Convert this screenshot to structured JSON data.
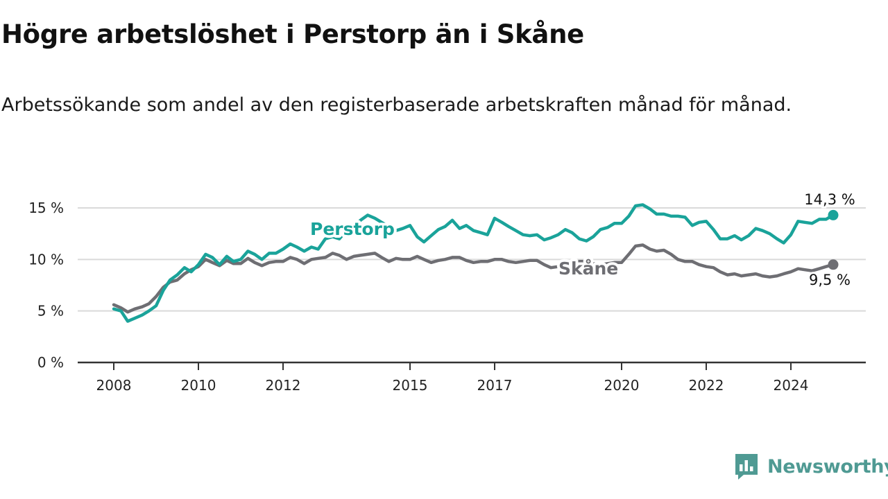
{
  "title": "Högre arbetslöshet i Perstorp än i Skåne",
  "subtitle": "Arbetssökande som andel av den registerbaserade arbetskraften månad för månad.",
  "brand": {
    "name": "Newsworthy",
    "icon": "newsworthy-logo-icon",
    "color": "#4f9a93"
  },
  "chart_data": {
    "type": "line",
    "title": "Högre arbetslöshet i Perstorp än i Skåne",
    "xlabel": "",
    "ylabel": "",
    "xlim": [
      2008,
      2026
    ],
    "ylim": [
      0,
      15
    ],
    "grid": true,
    "y_ticks": [
      {
        "value": 0,
        "label": "0 %"
      },
      {
        "value": 5,
        "label": "5 %"
      },
      {
        "value": 10,
        "label": "10 %"
      },
      {
        "value": 15,
        "label": "15 %"
      }
    ],
    "x_ticks": [
      {
        "value": 2008,
        "label": "2008"
      },
      {
        "value": 2010,
        "label": "2010"
      },
      {
        "value": 2012,
        "label": "2012"
      },
      {
        "value": 2015,
        "label": "2015"
      },
      {
        "value": 2017,
        "label": "2017"
      },
      {
        "value": 2020,
        "label": "2020"
      },
      {
        "value": 2022,
        "label": "2022"
      },
      {
        "value": 2024,
        "label": "2024"
      }
    ],
    "series": [
      {
        "name": "Perstorp",
        "color": "#1aa39a",
        "end_label": "14,3 %",
        "points": [
          [
            2008.0,
            5.2
          ],
          [
            2008.17,
            5.0
          ],
          [
            2008.33,
            4.0
          ],
          [
            2008.5,
            4.3
          ],
          [
            2008.67,
            4.6
          ],
          [
            2008.83,
            5.0
          ],
          [
            2009.0,
            5.5
          ],
          [
            2009.17,
            7.0
          ],
          [
            2009.33,
            8.0
          ],
          [
            2009.5,
            8.5
          ],
          [
            2009.67,
            9.2
          ],
          [
            2009.83,
            8.8
          ],
          [
            2010.0,
            9.5
          ],
          [
            2010.17,
            10.5
          ],
          [
            2010.33,
            10.2
          ],
          [
            2010.5,
            9.5
          ],
          [
            2010.67,
            10.3
          ],
          [
            2010.83,
            9.8
          ],
          [
            2011.0,
            10.0
          ],
          [
            2011.17,
            10.8
          ],
          [
            2011.33,
            10.5
          ],
          [
            2011.5,
            10.0
          ],
          [
            2011.67,
            10.6
          ],
          [
            2011.83,
            10.6
          ],
          [
            2012.0,
            11.0
          ],
          [
            2012.17,
            11.5
          ],
          [
            2012.33,
            11.2
          ],
          [
            2012.5,
            10.8
          ],
          [
            2012.67,
            11.2
          ],
          [
            2012.83,
            11.0
          ],
          [
            2013.0,
            12.0
          ],
          [
            2013.17,
            12.2
          ],
          [
            2013.33,
            12.0
          ],
          [
            2013.5,
            12.8
          ],
          [
            2013.67,
            13.2
          ],
          [
            2013.83,
            13.8
          ],
          [
            2014.0,
            14.3
          ],
          [
            2014.17,
            14.0
          ],
          [
            2014.33,
            13.6
          ],
          [
            2014.5,
            13.2
          ],
          [
            2014.67,
            12.8
          ],
          [
            2014.83,
            13.0
          ],
          [
            2015.0,
            13.3
          ],
          [
            2015.17,
            12.2
          ],
          [
            2015.33,
            11.7
          ],
          [
            2015.5,
            12.3
          ],
          [
            2015.67,
            12.9
          ],
          [
            2015.83,
            13.2
          ],
          [
            2016.0,
            13.8
          ],
          [
            2016.17,
            13.0
          ],
          [
            2016.33,
            13.3
          ],
          [
            2016.5,
            12.8
          ],
          [
            2016.67,
            12.6
          ],
          [
            2016.83,
            12.4
          ],
          [
            2017.0,
            14.0
          ],
          [
            2017.17,
            13.6
          ],
          [
            2017.33,
            13.2
          ],
          [
            2017.5,
            12.8
          ],
          [
            2017.67,
            12.4
          ],
          [
            2017.83,
            12.3
          ],
          [
            2018.0,
            12.4
          ],
          [
            2018.17,
            11.9
          ],
          [
            2018.33,
            12.1
          ],
          [
            2018.5,
            12.4
          ],
          [
            2018.67,
            12.9
          ],
          [
            2018.83,
            12.6
          ],
          [
            2019.0,
            12.0
          ],
          [
            2019.17,
            11.8
          ],
          [
            2019.33,
            12.2
          ],
          [
            2019.5,
            12.9
          ],
          [
            2019.67,
            13.1
          ],
          [
            2019.83,
            13.5
          ],
          [
            2020.0,
            13.5
          ],
          [
            2020.17,
            14.2
          ],
          [
            2020.33,
            15.2
          ],
          [
            2020.5,
            15.3
          ],
          [
            2020.67,
            14.9
          ],
          [
            2020.83,
            14.4
          ],
          [
            2021.0,
            14.4
          ],
          [
            2021.17,
            14.2
          ],
          [
            2021.33,
            14.2
          ],
          [
            2021.5,
            14.1
          ],
          [
            2021.67,
            13.3
          ],
          [
            2021.83,
            13.6
          ],
          [
            2022.0,
            13.7
          ],
          [
            2022.17,
            12.9
          ],
          [
            2022.33,
            12.0
          ],
          [
            2022.5,
            12.0
          ],
          [
            2022.67,
            12.3
          ],
          [
            2022.83,
            11.9
          ],
          [
            2023.0,
            12.3
          ],
          [
            2023.17,
            13.0
          ],
          [
            2023.33,
            12.8
          ],
          [
            2023.5,
            12.5
          ],
          [
            2023.67,
            12.0
          ],
          [
            2023.83,
            11.6
          ],
          [
            2024.0,
            12.4
          ],
          [
            2024.17,
            13.7
          ],
          [
            2024.33,
            13.6
          ],
          [
            2024.5,
            13.5
          ],
          [
            2024.67,
            13.9
          ],
          [
            2024.83,
            13.9
          ],
          [
            2025.0,
            14.3
          ]
        ]
      },
      {
        "name": "Skåne",
        "color": "#6e6e73",
        "end_label": "9,5 %",
        "points": [
          [
            2008.0,
            5.6
          ],
          [
            2008.17,
            5.3
          ],
          [
            2008.33,
            4.9
          ],
          [
            2008.5,
            5.2
          ],
          [
            2008.67,
            5.4
          ],
          [
            2008.83,
            5.7
          ],
          [
            2009.0,
            6.4
          ],
          [
            2009.17,
            7.3
          ],
          [
            2009.33,
            7.8
          ],
          [
            2009.5,
            8.0
          ],
          [
            2009.67,
            8.6
          ],
          [
            2009.83,
            9.0
          ],
          [
            2010.0,
            9.3
          ],
          [
            2010.17,
            10.0
          ],
          [
            2010.33,
            9.7
          ],
          [
            2010.5,
            9.4
          ],
          [
            2010.67,
            9.9
          ],
          [
            2010.83,
            9.6
          ],
          [
            2011.0,
            9.6
          ],
          [
            2011.17,
            10.1
          ],
          [
            2011.33,
            9.7
          ],
          [
            2011.5,
            9.4
          ],
          [
            2011.67,
            9.7
          ],
          [
            2011.83,
            9.8
          ],
          [
            2012.0,
            9.8
          ],
          [
            2012.17,
            10.2
          ],
          [
            2012.33,
            10.0
          ],
          [
            2012.5,
            9.6
          ],
          [
            2012.67,
            10.0
          ],
          [
            2012.83,
            10.1
          ],
          [
            2013.0,
            10.2
          ],
          [
            2013.17,
            10.6
          ],
          [
            2013.33,
            10.4
          ],
          [
            2013.5,
            10.0
          ],
          [
            2013.67,
            10.3
          ],
          [
            2013.83,
            10.4
          ],
          [
            2014.0,
            10.5
          ],
          [
            2014.17,
            10.6
          ],
          [
            2014.33,
            10.2
          ],
          [
            2014.5,
            9.8
          ],
          [
            2014.67,
            10.1
          ],
          [
            2014.83,
            10.0
          ],
          [
            2015.0,
            10.0
          ],
          [
            2015.17,
            10.3
          ],
          [
            2015.33,
            10.0
          ],
          [
            2015.5,
            9.7
          ],
          [
            2015.67,
            9.9
          ],
          [
            2015.83,
            10.0
          ],
          [
            2016.0,
            10.2
          ],
          [
            2016.17,
            10.2
          ],
          [
            2016.33,
            9.9
          ],
          [
            2016.5,
            9.7
          ],
          [
            2016.67,
            9.8
          ],
          [
            2016.83,
            9.8
          ],
          [
            2017.0,
            10.0
          ],
          [
            2017.17,
            10.0
          ],
          [
            2017.33,
            9.8
          ],
          [
            2017.5,
            9.7
          ],
          [
            2017.67,
            9.8
          ],
          [
            2017.83,
            9.9
          ],
          [
            2018.0,
            9.9
          ],
          [
            2018.17,
            9.5
          ],
          [
            2018.33,
            9.2
          ],
          [
            2018.5,
            9.3
          ],
          [
            2018.67,
            9.5
          ],
          [
            2018.83,
            9.7
          ],
          [
            2019.0,
            9.8
          ],
          [
            2019.17,
            9.8
          ],
          [
            2019.33,
            9.6
          ],
          [
            2019.5,
            9.5
          ],
          [
            2019.67,
            9.6
          ],
          [
            2019.83,
            9.7
          ],
          [
            2020.0,
            9.7
          ],
          [
            2020.17,
            10.5
          ],
          [
            2020.33,
            11.3
          ],
          [
            2020.5,
            11.4
          ],
          [
            2020.67,
            11.0
          ],
          [
            2020.83,
            10.8
          ],
          [
            2021.0,
            10.9
          ],
          [
            2021.17,
            10.5
          ],
          [
            2021.33,
            10.0
          ],
          [
            2021.5,
            9.8
          ],
          [
            2021.67,
            9.8
          ],
          [
            2021.83,
            9.5
          ],
          [
            2022.0,
            9.3
          ],
          [
            2022.17,
            9.2
          ],
          [
            2022.33,
            8.8
          ],
          [
            2022.5,
            8.5
          ],
          [
            2022.67,
            8.6
          ],
          [
            2022.83,
            8.4
          ],
          [
            2023.0,
            8.5
          ],
          [
            2023.17,
            8.6
          ],
          [
            2023.33,
            8.4
          ],
          [
            2023.5,
            8.3
          ],
          [
            2023.67,
            8.4
          ],
          [
            2023.83,
            8.6
          ],
          [
            2024.0,
            8.8
          ],
          [
            2024.17,
            9.1
          ],
          [
            2024.33,
            9.0
          ],
          [
            2024.5,
            8.9
          ],
          [
            2024.67,
            9.1
          ],
          [
            2024.83,
            9.3
          ],
          [
            2025.0,
            9.5
          ]
        ]
      }
    ]
  }
}
